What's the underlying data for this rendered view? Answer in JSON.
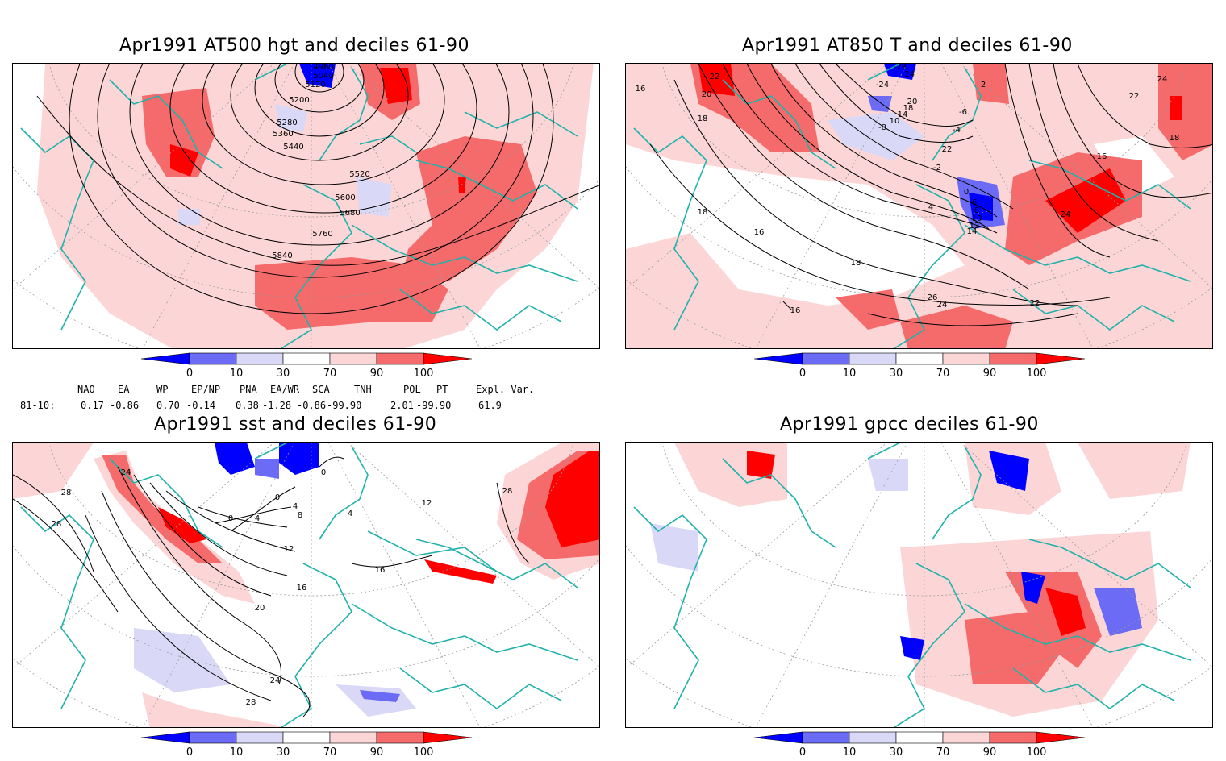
{
  "panels": [
    {
      "title": "Apr1991 AT500 hgt and deciles 61-90",
      "contour_labels": [
        "4960",
        "5040",
        "5120",
        "5200",
        "5280",
        "5360",
        "5440",
        "5520",
        "5600",
        "5680",
        "5760",
        "5840"
      ]
    },
    {
      "title": "Apr1991 AT850 T and deciles 61-90",
      "contour_labels": [
        "22",
        "20",
        "18",
        "16",
        "18",
        "16",
        "16",
        "18",
        "-24",
        "-28",
        "-24",
        "2",
        "24",
        "22",
        "18",
        "-6",
        "-4",
        "-8",
        "10",
        "14",
        "18",
        "20",
        "22",
        "-2",
        "0",
        "4",
        "6",
        "8",
        "10",
        "12",
        "14",
        "16",
        "24",
        "26",
        "24",
        "22",
        "20"
      ]
    },
    {
      "title": "Apr1991 sst and deciles 61-90",
      "contour_labels": [
        "24",
        "28",
        "28",
        "0",
        "0",
        "4",
        "4",
        "8",
        "0",
        "4",
        "12",
        "16",
        "16",
        "20",
        "24",
        "28",
        "28",
        "12"
      ]
    },
    {
      "title": "Apr1991 gpcc deciles 61-90",
      "contour_labels": []
    }
  ],
  "colorbar": {
    "tick_labels": [
      "0",
      "10",
      "30",
      "70",
      "90",
      "100"
    ],
    "colors": [
      "#0000ff",
      "#6b6bf5",
      "#d9d9f7",
      "#ffffff",
      "#fcd6d6",
      "#f56b6b",
      "#ff0000"
    ]
  },
  "indices": {
    "headers": [
      "NAO",
      "EA",
      "WP",
      "EP/NP",
      "PNA",
      "EA/WR",
      "SCA",
      "TNH",
      "POL",
      "PT",
      "Expl. Var."
    ],
    "row_label": "81-10:",
    "values": [
      "0.17",
      "-0.86",
      "0.70",
      "-0.14",
      "0.38",
      "-1.28",
      "-0.86",
      "-99.90",
      "2.01",
      "-99.90",
      "61.9"
    ]
  },
  "map_colors": {
    "coast": "#20b2aa",
    "contour": "#000000",
    "grid": "#9a9a9a"
  }
}
